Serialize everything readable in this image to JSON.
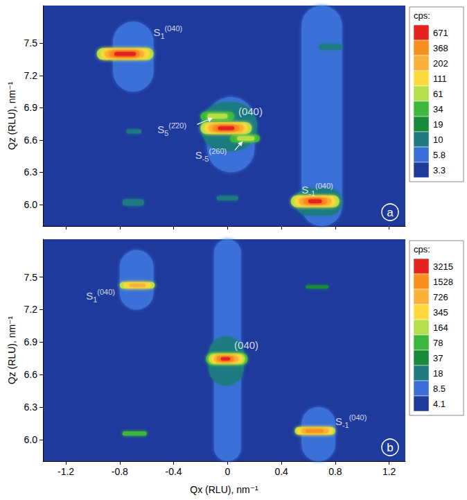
{
  "chart_data": [
    {
      "panel": "a",
      "type": "heatmap",
      "grid": false,
      "tick_labels": "y",
      "y_label": "Qz (RLU), nm⁻¹",
      "xlim": [
        -1.37,
        1.32
      ],
      "xticks": [
        -1.2,
        -0.8,
        -0.4,
        0,
        0.4,
        0.8,
        1.2
      ],
      "ylim": [
        5.8,
        7.85
      ],
      "yticks": [
        {
          "value": 6,
          "label": "6.0"
        },
        6.3,
        6.6,
        6.9,
        7.2,
        7.5
      ],
      "colorbar": {
        "title": "cps:",
        "ticks": [
          671,
          368,
          202,
          111,
          61,
          34,
          19,
          10,
          5.8,
          3.3
        ],
        "colors": [
          "#e52420",
          "#f7901e",
          "#fbb03b",
          "#ffd93a",
          "#b5df4a",
          "#3cb83c",
          "#1a8a3a",
          "#1f7a80",
          "#3a6fd8",
          "#1e3a9c"
        ]
      },
      "regions": [
        {
          "qx": [
            0.55,
            0.85
          ],
          "qz": [
            5.8,
            7.85
          ],
          "cps": 5.8
        },
        {
          "qx": [
            -0.85,
            -0.55
          ],
          "qz": [
            7.05,
            7.7
          ],
          "cps": 5.8
        },
        {
          "qx": [
            -0.15,
            0.2
          ],
          "qz": [
            6.3,
            7.0
          ],
          "cps": 5.8
        },
        {
          "qx": [
            0.5,
            0.85
          ],
          "qz": [
            5.9,
            6.15
          ],
          "cps": 10
        },
        {
          "qx": [
            -0.78,
            -0.62
          ],
          "qz": [
            5.99,
            6.05
          ],
          "cps": 10
        },
        {
          "qx": [
            -0.08,
            0.08
          ],
          "qz": [
            6.04,
            6.08
          ],
          "cps": 10
        },
        {
          "qx": [
            0.68,
            0.85
          ],
          "qz": [
            7.44,
            7.49
          ],
          "cps": 10
        },
        {
          "qx": [
            -0.75,
            -0.64
          ],
          "qz": [
            6.66,
            6.7
          ],
          "cps": 10
        },
        {
          "qx": [
            -0.2,
            0.22
          ],
          "qz": [
            6.5,
            6.95
          ],
          "cps": 10
        },
        {
          "qx": [
            -0.97,
            -0.55
          ],
          "qz": [
            7.345,
            7.455
          ],
          "cps": 61
        },
        {
          "qx": [
            -0.94,
            -0.58
          ],
          "qz": [
            7.355,
            7.445
          ],
          "cps": 111
        },
        {
          "qx": [
            -0.91,
            -0.62
          ],
          "qz": [
            7.365,
            7.435
          ],
          "cps": 202
        },
        {
          "qx": [
            -0.88,
            -0.65
          ],
          "qz": [
            7.372,
            7.428
          ],
          "cps": 368
        },
        {
          "qx": [
            -0.84,
            -0.68
          ],
          "qz": [
            7.382,
            7.418
          ],
          "cps": 671
        },
        {
          "qx": [
            -0.2,
            0.05
          ],
          "qz": [
            6.78,
            6.86
          ],
          "cps": 34
        },
        {
          "qx": [
            -0.15,
            0.0
          ],
          "qz": [
            6.8,
            6.845
          ],
          "cps": 61
        },
        {
          "qx": [
            0.02,
            0.24
          ],
          "qz": [
            6.58,
            6.65
          ],
          "cps": 34
        },
        {
          "qx": [
            0.07,
            0.2
          ],
          "qz": [
            6.595,
            6.635
          ],
          "cps": 61
        },
        {
          "qx": [
            -0.2,
            0.18
          ],
          "qz": [
            6.655,
            6.765
          ],
          "cps": 61
        },
        {
          "qx": [
            -0.17,
            0.15
          ],
          "qz": [
            6.665,
            6.755
          ],
          "cps": 111
        },
        {
          "qx": [
            -0.14,
            0.12
          ],
          "qz": [
            6.675,
            6.745
          ],
          "cps": 202
        },
        {
          "qx": [
            -0.11,
            0.09
          ],
          "qz": [
            6.683,
            6.737
          ],
          "cps": 368
        },
        {
          "qx": [
            -0.07,
            0.05
          ],
          "qz": [
            6.693,
            6.727
          ],
          "cps": 671
        },
        {
          "qx": [
            0.47,
            0.83
          ],
          "qz": [
            5.975,
            6.085
          ],
          "cps": 61
        },
        {
          "qx": [
            0.5,
            0.8
          ],
          "qz": [
            5.985,
            6.075
          ],
          "cps": 111
        },
        {
          "qx": [
            0.53,
            0.77
          ],
          "qz": [
            5.995,
            6.065
          ],
          "cps": 202
        },
        {
          "qx": [
            0.56,
            0.74
          ],
          "qz": [
            6.002,
            6.058
          ],
          "cps": 368
        },
        {
          "qx": [
            0.6,
            0.7
          ],
          "qz": [
            6.012,
            6.048
          ],
          "cps": 671
        }
      ],
      "annotations": [
        {
          "text": "S",
          "sub": "1",
          "sup": "(040)",
          "x": -0.55,
          "y": 7.6
        },
        {
          "text": "(040)",
          "x": 0.08,
          "y": 6.87
        },
        {
          "text": "S",
          "sub": "5",
          "sup": "(2̄20)",
          "x": -0.52,
          "y": 6.7,
          "arrow": [
            -0.1,
            6.81
          ]
        },
        {
          "text": "S",
          "sub": "-5",
          "sup": "(260)",
          "x": -0.24,
          "y": 6.46,
          "arrow": [
            0.12,
            6.6
          ]
        },
        {
          "text": "S",
          "sub": "-1",
          "sup": "(040)",
          "x": 0.55,
          "y": 6.14
        }
      ]
    },
    {
      "panel": "b",
      "type": "heatmap",
      "grid": false,
      "x_label": "Qx (RLU), nm⁻¹",
      "y_label": "Qz (RLU), nm⁻¹",
      "xlim": [
        -1.37,
        1.32
      ],
      "xticks": [
        -1.2,
        -0.8,
        -0.4,
        0,
        0.4,
        0.8,
        1.2
      ],
      "ylim": [
        5.8,
        7.85
      ],
      "yticks": [
        {
          "value": 6,
          "label": "6.0"
        },
        6.3,
        6.6,
        6.9,
        7.2,
        7.5
      ],
      "colorbar": {
        "title": "cps:",
        "ticks": [
          3215,
          1528,
          726,
          345,
          164,
          78,
          37,
          18,
          8.5,
          4.1
        ],
        "colors": [
          "#e52420",
          "#f7901e",
          "#fbb03b",
          "#ffd93a",
          "#b5df4a",
          "#3cb83c",
          "#1a8a3a",
          "#1f7a80",
          "#3a6fd8",
          "#1e3a9c"
        ]
      },
      "regions": [
        {
          "qx": [
            -0.1,
            0.1
          ],
          "qz": [
            5.8,
            7.85
          ],
          "cps": 8.5
        },
        {
          "qx": [
            0.55,
            0.8
          ],
          "qz": [
            5.8,
            6.3
          ],
          "cps": 8.5
        },
        {
          "qx": [
            -0.8,
            -0.55
          ],
          "qz": [
            7.2,
            7.75
          ],
          "cps": 8.5
        },
        {
          "qx": [
            -0.14,
            0.12
          ],
          "qz": [
            6.5,
            6.95
          ],
          "cps": 18
        },
        {
          "qx": [
            -0.78,
            -0.6
          ],
          "qz": [
            6.035,
            6.075
          ],
          "cps": 78
        },
        {
          "qx": [
            0.58,
            0.75
          ],
          "qz": [
            7.395,
            7.425
          ],
          "cps": 37
        },
        {
          "qx": [
            -0.8,
            -0.54
          ],
          "qz": [
            7.395,
            7.455
          ],
          "cps": 164
        },
        {
          "qx": [
            -0.77,
            -0.57
          ],
          "qz": [
            7.402,
            7.448
          ],
          "cps": 345
        },
        {
          "qx": [
            -0.73,
            -0.61
          ],
          "qz": [
            7.41,
            7.44
          ],
          "cps": 726
        },
        {
          "qx": [
            -0.16,
            0.15
          ],
          "qz": [
            6.69,
            6.8
          ],
          "cps": 78
        },
        {
          "qx": [
            -0.14,
            0.13
          ],
          "qz": [
            6.7,
            6.79
          ],
          "cps": 164
        },
        {
          "qx": [
            -0.12,
            0.11
          ],
          "qz": [
            6.708,
            6.782
          ],
          "cps": 345
        },
        {
          "qx": [
            -0.1,
            0.08
          ],
          "qz": [
            6.715,
            6.775
          ],
          "cps": 726
        },
        {
          "qx": [
            -0.08,
            0.05
          ],
          "qz": [
            6.722,
            6.768
          ],
          "cps": 1528
        },
        {
          "qx": [
            -0.05,
            0.02
          ],
          "qz": [
            6.73,
            6.76
          ],
          "cps": 3215
        },
        {
          "qx": [
            0.5,
            0.8
          ],
          "qz": [
            6.045,
            6.115
          ],
          "cps": 164
        },
        {
          "qx": [
            0.52,
            0.78
          ],
          "qz": [
            6.052,
            6.108
          ],
          "cps": 345
        },
        {
          "qx": [
            0.55,
            0.75
          ],
          "qz": [
            6.058,
            6.102
          ],
          "cps": 726
        },
        {
          "qx": [
            0.58,
            0.71
          ],
          "qz": [
            6.065,
            6.095
          ],
          "cps": 1528
        }
      ],
      "annotations": [
        {
          "text": "S",
          "sub": "1",
          "sup": "(040)",
          "x": -1.05,
          "y": 7.33
        },
        {
          "text": "(040)",
          "x": 0.05,
          "y": 6.87
        },
        {
          "text": "S",
          "sub": "-1",
          "sup": "(040)",
          "x": 0.8,
          "y": 6.17
        }
      ]
    }
  ]
}
